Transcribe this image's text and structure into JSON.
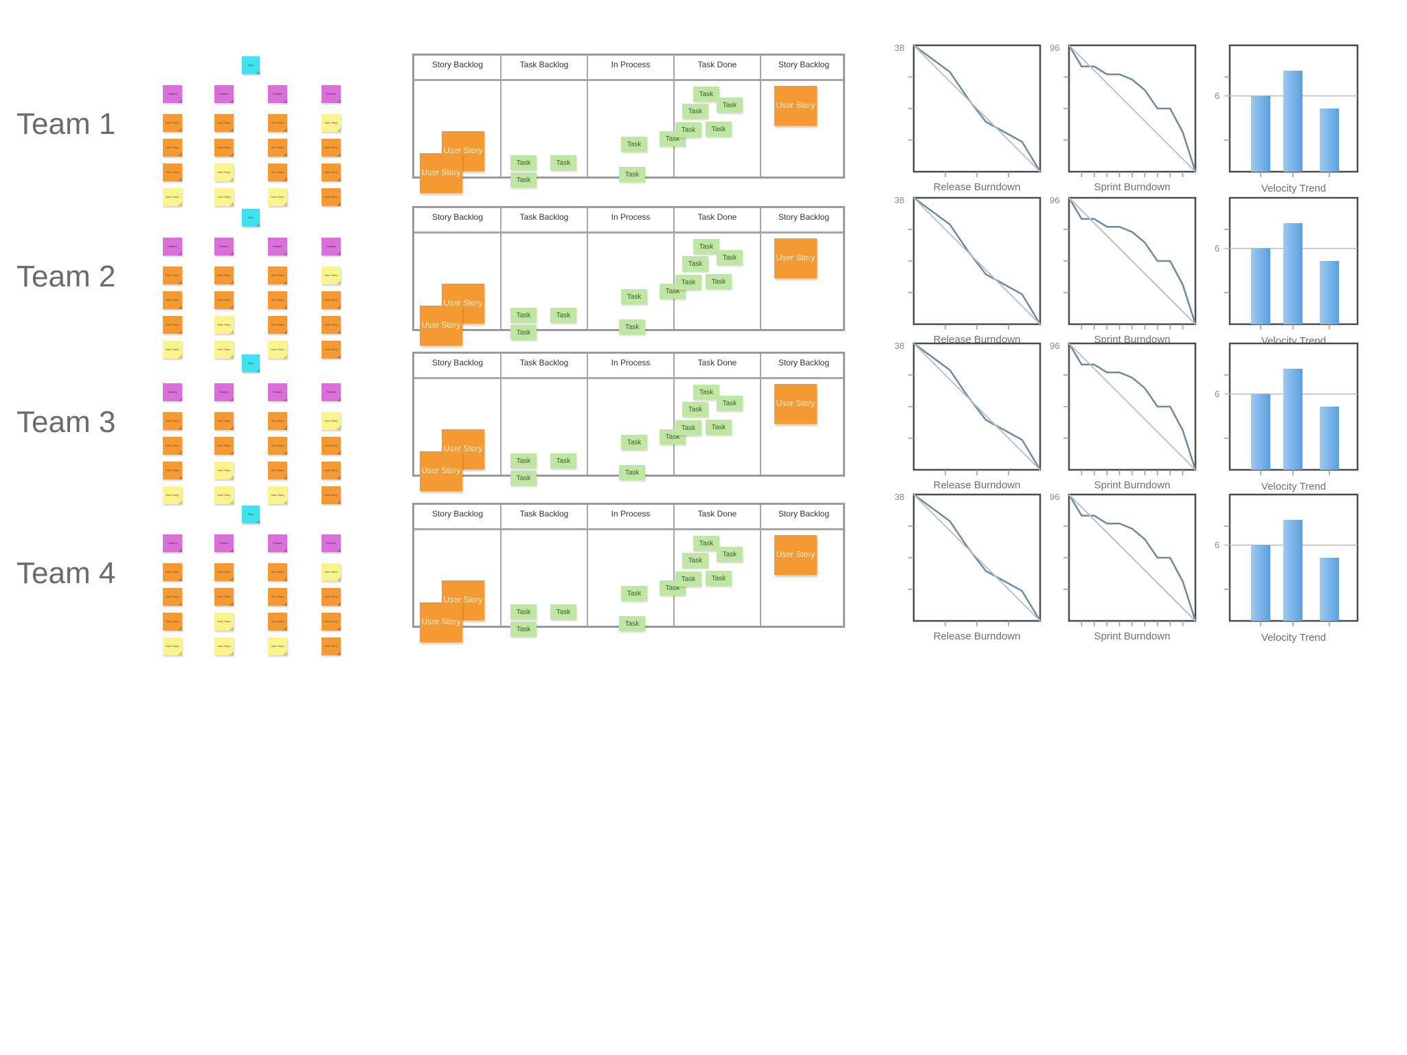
{
  "teams": [
    {
      "label": "Team 1"
    },
    {
      "label": "Team 2"
    },
    {
      "label": "Team 3"
    },
    {
      "label": "Team 4"
    }
  ],
  "backlog": {
    "epic": "Epic",
    "feature": "Feature",
    "user_story": "User Story",
    "columns": [
      [
        "orange",
        "orange",
        "orange",
        "yellow"
      ],
      [
        "orange",
        "orange",
        "yellow",
        "yellow"
      ],
      [
        "orange",
        "orange",
        "orange",
        "yellow"
      ],
      [
        "yellow",
        "orange",
        "orange",
        "orange"
      ]
    ]
  },
  "board": {
    "columns": [
      "Story Backlog",
      "Task Backlog",
      "In Process",
      "Task Done",
      "Story Backlog"
    ],
    "task_label": "Task",
    "story_label": "User Story"
  },
  "colors": {
    "epic": "#3fe2ee",
    "feature": "#d96fd9",
    "story_orange": "#f59a32",
    "story_yellow": "#fbf38d",
    "task": "#bfe6a2",
    "bar": "#5a9fde",
    "line": "#6d8aa3"
  },
  "chart_data": [
    {
      "type": "line",
      "title": "Release Burndown",
      "ymax_label": "38",
      "ylim": [
        0,
        38
      ],
      "series": [
        {
          "values": [
            38,
            34,
            30,
            22,
            15,
            12,
            9,
            0
          ]
        },
        {
          "values": [
            38,
            0
          ]
        }
      ]
    },
    {
      "type": "line",
      "title": "Sprint Burndown",
      "ymax_label": "96",
      "ylim": [
        0,
        96
      ],
      "series": [
        {
          "values": [
            96,
            80,
            80,
            74,
            74,
            70,
            62,
            48,
            48,
            30,
            0
          ]
        },
        {
          "values": [
            96,
            0
          ]
        }
      ]
    },
    {
      "type": "bar",
      "title": "Velocity Trend",
      "ref_label": "6",
      "values": [
        6,
        8,
        5
      ],
      "data_labels": [
        "6",
        "8",
        "5"
      ],
      "ylim": [
        0,
        10
      ]
    }
  ]
}
